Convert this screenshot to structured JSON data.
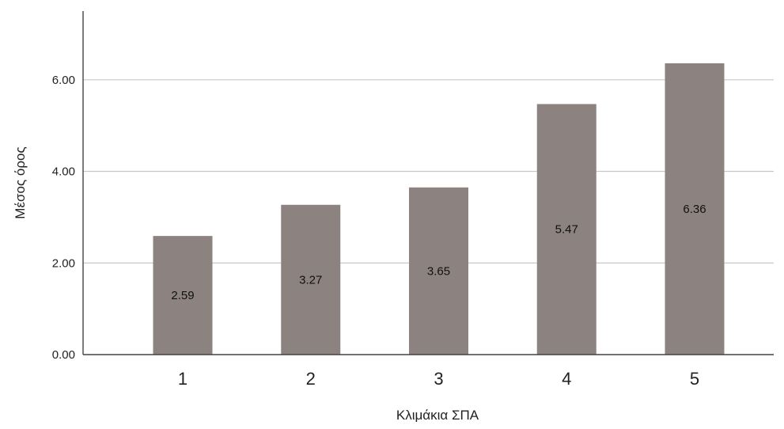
{
  "chart_data": {
    "type": "bar",
    "categories": [
      "1",
      "2",
      "3",
      "4",
      "5"
    ],
    "values": [
      2.59,
      3.27,
      3.65,
      5.47,
      6.36
    ],
    "data_labels": [
      "2.59",
      "3.27",
      "3.65",
      "5.47",
      "6.36"
    ],
    "y_ticks": [
      0,
      2,
      4,
      6
    ],
    "y_tick_labels": [
      "0.00",
      "2.00",
      "4.00",
      "6.00"
    ],
    "ylim": [
      0,
      7.5
    ],
    "xlabel": "Κλιμάκια ΣΠΑ",
    "ylabel": "Μέσος όρος",
    "bar_color": "#8c8381",
    "grid": true,
    "legend": "none"
  }
}
